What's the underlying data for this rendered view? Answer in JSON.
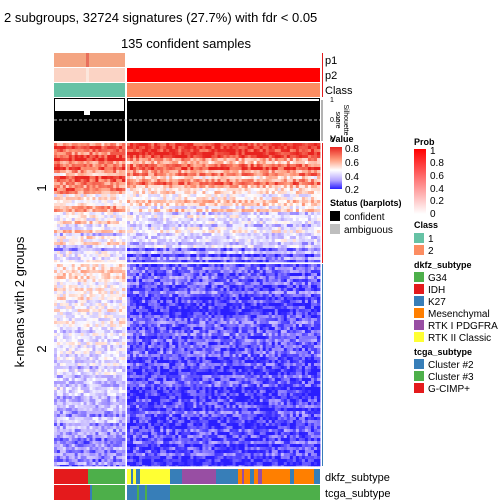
{
  "chart_data": {
    "type": "heatmap",
    "title": "2 subgroups, 32724 signatures (27.7%) with fdr < 0.05",
    "subtitle": "135 confident samples",
    "ylabel": "k-means with 2 groups",
    "row_groups": [
      "1",
      "2"
    ],
    "row_group_fraction": [
      0.37,
      0.63
    ],
    "column_groups": {
      "group1_fraction": 0.2,
      "group2_fraction": 0.8
    },
    "top_tracks": [
      "p1",
      "p2",
      "Class"
    ],
    "silhouette": {
      "label": "Silhouette\nscore",
      "ticks": [
        "1",
        "0.5",
        "0"
      ],
      "cutoff": 0.5
    },
    "bottom_tracks": [
      "dkfz_subtype",
      "tcga_subtype"
    ],
    "value_scale": {
      "title": "Value",
      "ticks": [
        "0.8",
        "0.6",
        "0.4",
        "0.2"
      ],
      "colors": [
        "#e8231f",
        "#ff9b7c",
        "#ffffff",
        "#b3a3ff",
        "#2a1eff"
      ]
    },
    "prob_scale": {
      "title": "Prob",
      "ticks": [
        "1",
        "0.8",
        "0.6",
        "0.4",
        "0.2",
        "0"
      ],
      "colors": [
        "#ff0000",
        "#ffffff"
      ]
    },
    "legends": [
      {
        "title": "Status (barplots)",
        "items": [
          {
            "label": "confident",
            "color": "#000000"
          },
          {
            "label": "ambiguous",
            "color": "#bebebe"
          }
        ]
      },
      {
        "title": "Class",
        "items": [
          {
            "label": "1",
            "color": "#66c2a5"
          },
          {
            "label": "2",
            "color": "#fc8d62"
          }
        ]
      },
      {
        "title": "dkfz_subtype",
        "items": [
          {
            "label": "G34",
            "color": "#4daf4a"
          },
          {
            "label": "IDH",
            "color": "#e41a1c"
          },
          {
            "label": "K27",
            "color": "#377eb8"
          },
          {
            "label": "Mesenchymal",
            "color": "#ff7f00"
          },
          {
            "label": "RTK I PDGFRA",
            "color": "#984ea3"
          },
          {
            "label": "RTK II Classic",
            "color": "#ffff33"
          }
        ]
      },
      {
        "title": "tcga_subtype",
        "items": [
          {
            "label": "Cluster #2",
            "color": "#377eb8"
          },
          {
            "label": "Cluster #3",
            "color": "#4daf4a"
          },
          {
            "label": "G-CIMP+",
            "color": "#e41a1c"
          }
        ]
      }
    ]
  }
}
